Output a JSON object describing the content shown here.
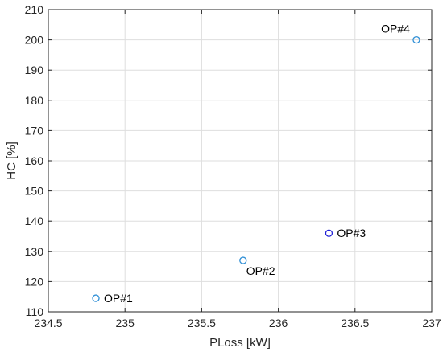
{
  "chart_data": {
    "type": "scatter",
    "title": "",
    "xlabel": "PLoss [kW]",
    "ylabel": "HC [%]",
    "xlim": [
      234.5,
      237
    ],
    "ylim": [
      110,
      210
    ],
    "xticks": [
      234.5,
      235,
      235.5,
      236,
      236.5,
      237
    ],
    "yticks": [
      110,
      120,
      130,
      140,
      150,
      160,
      170,
      180,
      190,
      200,
      210
    ],
    "xtick_labels": [
      "234.5",
      "235",
      "235.5",
      "236",
      "236.5",
      "237"
    ],
    "ytick_labels": [
      "110",
      "120",
      "130",
      "140",
      "150",
      "160",
      "170",
      "180",
      "190",
      "200",
      "210"
    ],
    "grid": true,
    "legend": "none",
    "points": [
      {
        "label": "OP#1",
        "x": 234.81,
        "y": 114.5,
        "color": "#2f8fd6",
        "label_position": "right"
      },
      {
        "label": "OP#2",
        "x": 235.77,
        "y": 127,
        "color": "#2f8fd6",
        "label_position": "below-right"
      },
      {
        "label": "OP#3",
        "x": 236.33,
        "y": 136,
        "color": "#1f1fd6",
        "label_position": "right"
      },
      {
        "label": "OP#4",
        "x": 236.9,
        "y": 200,
        "color": "#2f8fd6",
        "label_position": "above-left"
      }
    ]
  }
}
